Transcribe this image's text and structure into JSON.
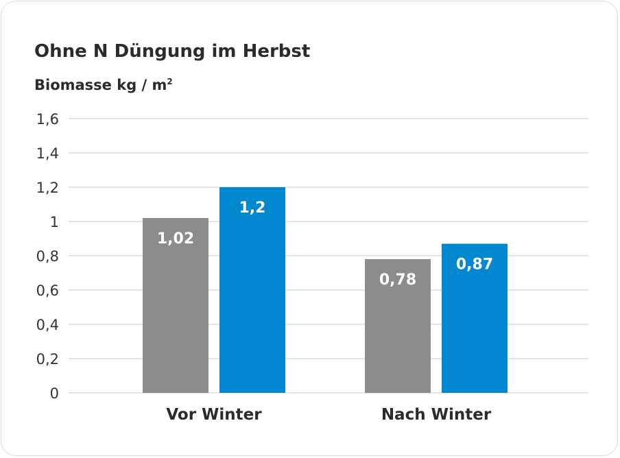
{
  "chart_data": {
    "type": "bar",
    "title": "Ohne N Düngung im Herbst",
    "ylabel": "Biomasse kg / m",
    "ylabel_superscript": "2",
    "xlabel": "",
    "ylim": [
      0,
      1.6
    ],
    "yticks": [
      "0",
      "0,2",
      "0,4",
      "0,6",
      "0,8",
      "1",
      "1,2",
      "1,4",
      "1,6"
    ],
    "grid": true,
    "categories": [
      "Vor Winter",
      "Nach Winter"
    ],
    "series": [
      {
        "color": "#8c8c8c",
        "values": [
          1.02,
          0.78
        ],
        "labels": [
          "1,02",
          "0,78"
        ]
      },
      {
        "color": "#0288d1",
        "values": [
          1.2,
          0.87
        ],
        "labels": [
          "1,2",
          "0,87"
        ]
      }
    ]
  }
}
